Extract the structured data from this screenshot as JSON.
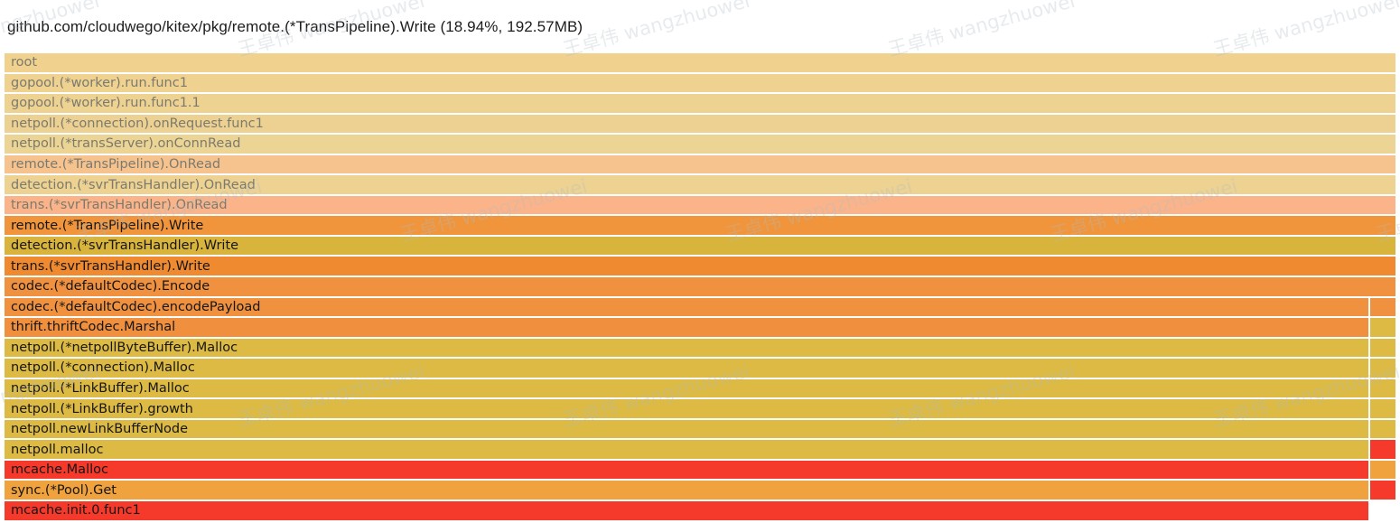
{
  "header": {
    "title": "github.com/cloudwego/kitex/pkg/remote.(*TransPipeline).Write (18.94%, 192.57MB)"
  },
  "watermark": {
    "text": "王卓伟 wangzhuowei"
  },
  "chart_data": {
    "type": "flamegraph",
    "selected_frame": "remote.(*TransPipeline).Write",
    "selected_percent": "18.94%",
    "selected_size": "192.57MB",
    "colors": {
      "tan": "#f0d28e",
      "peach": "#f6c28e",
      "salmon": "#fbb489",
      "orange": "#f09140",
      "gold": "#dcba43",
      "red": "#f5392b",
      "dim_text": "#7b7a6e",
      "text": "#161616"
    },
    "frames": [
      {
        "label": "root",
        "bg": "#f0d28e",
        "dim": true,
        "main_w": 1540,
        "right_w": 0,
        "right_bg": null
      },
      {
        "label": "gopool.(*worker).run.func1",
        "bg": "#efd190",
        "dim": true,
        "main_w": 1540,
        "right_w": 0,
        "right_bg": null
      },
      {
        "label": "gopool.(*worker).run.func1.1",
        "bg": "#eed292",
        "dim": true,
        "main_w": 1540,
        "right_w": 0,
        "right_bg": null
      },
      {
        "label": "netpoll.(*connection).onRequest.func1",
        "bg": "#edd192",
        "dim": true,
        "main_w": 1540,
        "right_w": 0,
        "right_bg": null
      },
      {
        "label": "netpoll.(*transServer).onConnRead",
        "bg": "#ecd494",
        "dim": true,
        "main_w": 1540,
        "right_w": 0,
        "right_bg": null
      },
      {
        "label": "remote.(*TransPipeline).OnRead",
        "bg": "#f6c28e",
        "dim": true,
        "main_w": 1540,
        "right_w": 0,
        "right_bg": null
      },
      {
        "label": "detection.(*svrTransHandler).OnRead",
        "bg": "#edd292",
        "dim": true,
        "main_w": 1540,
        "right_w": 0,
        "right_bg": null
      },
      {
        "label": "trans.(*svrTransHandler).OnRead",
        "bg": "#fbb489",
        "dim": true,
        "main_w": 1540,
        "right_w": 0,
        "right_bg": null
      },
      {
        "label": "remote.(*TransPipeline).Write",
        "bg": "#f0953c",
        "dim": false,
        "main_w": 1540,
        "right_w": 0,
        "right_bg": null
      },
      {
        "label": "detection.(*svrTransHandler).Write",
        "bg": "#d9b43c",
        "dim": false,
        "main_w": 1540,
        "right_w": 0,
        "right_bg": null
      },
      {
        "label": "trans.(*svrTransHandler).Write",
        "bg": "#ef8a31",
        "dim": false,
        "main_w": 1540,
        "right_w": 0,
        "right_bg": null
      },
      {
        "label": "codec.(*defaultCodec).Encode",
        "bg": "#f09140",
        "dim": false,
        "main_w": 1540,
        "right_w": 0,
        "right_bg": null
      },
      {
        "label": "codec.(*defaultCodec).encodePayload",
        "bg": "#f09140",
        "dim": false,
        "main_w": 1510,
        "right_w": 28,
        "right_bg": "#f09140"
      },
      {
        "label": "thrift.thriftCodec.Marshal",
        "bg": "#f08f3e",
        "dim": false,
        "main_w": 1510,
        "right_w": 28,
        "right_bg": "#dcba43"
      },
      {
        "label": "netpoll.(*netpollByteBuffer).Malloc",
        "bg": "#dcba43",
        "dim": false,
        "main_w": 1510,
        "right_w": 28,
        "right_bg": "#dcba43"
      },
      {
        "label": "netpoll.(*connection).Malloc",
        "bg": "#dcba43",
        "dim": false,
        "main_w": 1510,
        "right_w": 28,
        "right_bg": "#dcba43"
      },
      {
        "label": "netpoll.(*LinkBuffer).Malloc",
        "bg": "#dcba43",
        "dim": false,
        "main_w": 1510,
        "right_w": 28,
        "right_bg": "#dcba43"
      },
      {
        "label": "netpoll.(*LinkBuffer).growth",
        "bg": "#dcba43",
        "dim": false,
        "main_w": 1510,
        "right_w": 28,
        "right_bg": "#dcba43"
      },
      {
        "label": "netpoll.newLinkBufferNode",
        "bg": "#dcba43",
        "dim": false,
        "main_w": 1510,
        "right_w": 28,
        "right_bg": "#dcba43"
      },
      {
        "label": "netpoll.malloc",
        "bg": "#dcba43",
        "dim": false,
        "main_w": 1510,
        "right_w": 28,
        "right_bg": "#f5392b"
      },
      {
        "label": "mcache.Malloc",
        "bg": "#f5392b",
        "dim": false,
        "main_w": 1510,
        "right_w": 28,
        "right_bg": "#efa23d"
      },
      {
        "label": "sync.(*Pool).Get",
        "bg": "#efa23d",
        "dim": false,
        "main_w": 1510,
        "right_w": 28,
        "right_bg": "#f5392b"
      },
      {
        "label": "mcache.init.0.func1",
        "bg": "#f5392b",
        "dim": false,
        "main_w": 1510,
        "right_w": 0,
        "right_bg": null
      }
    ]
  }
}
